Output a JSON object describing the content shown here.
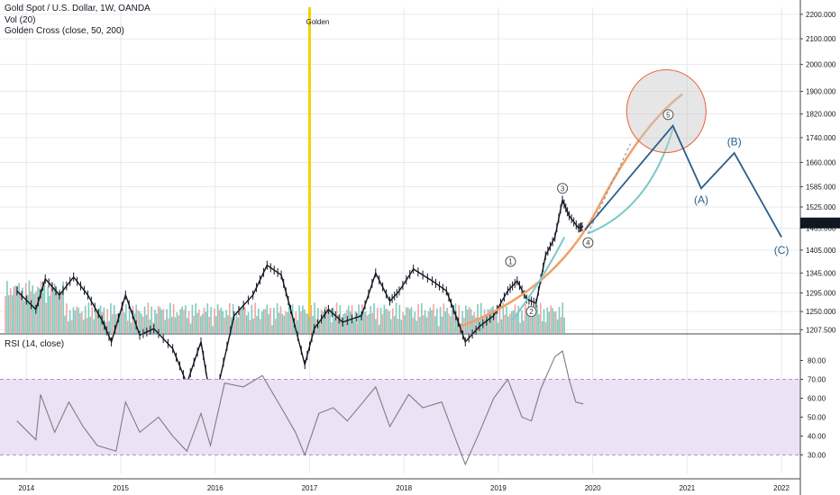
{
  "legend": {
    "title": "Gold Spot / U.S. Dollar, 1W, OANDA",
    "vol": "Vol (20)",
    "golden_cross": "Golden Cross (close, 50, 200)"
  },
  "rsi_legend": "RSI (14, close)",
  "colors": {
    "grid": "#e6e9ee",
    "candle": "#131722",
    "vol_up": "#7fcbbf",
    "vol_down": "#f3a4a3",
    "golden_line": "#f5d300",
    "orange_curve": "#f0a06a",
    "teal_curve": "#7cc9c9",
    "wave_line": "#2a5f8c",
    "circle_stroke": "#e8623b",
    "circle_fill": "rgba(200,200,200,0.45)",
    "rsi_band": "#ece2f6",
    "rsi_band_line": "#b78be0",
    "rsi_line": "#7e7e7e",
    "price_tag": "#131722"
  },
  "chart_data": {
    "type": "line",
    "symbol": "Gold Spot / U.S. Dollar, 1W, OANDA",
    "x_axis_labels": [
      "2014",
      "2015",
      "2016",
      "2017",
      "2018",
      "2019",
      "2020",
      "2021",
      "2022"
    ],
    "y_axis_labels": [
      "2200.000",
      "2100.000",
      "2000.000",
      "1900.000",
      "1820.000",
      "1740.000",
      "1660.000",
      "1585.000",
      "1525.000",
      "1465.000",
      "1405.000",
      "1345.000",
      "1295.000",
      "1250.000",
      "1207.500"
    ],
    "current_price": "1479.355",
    "golden_marker": {
      "x": 2017.0,
      "label": "Golden"
    },
    "price_series": [
      {
        "x": 2013.9,
        "y": 1300
      },
      {
        "x": 2014.1,
        "y": 1255
      },
      {
        "x": 2014.2,
        "y": 1330
      },
      {
        "x": 2014.35,
        "y": 1290
      },
      {
        "x": 2014.5,
        "y": 1335
      },
      {
        "x": 2014.65,
        "y": 1290
      },
      {
        "x": 2014.8,
        "y": 1230
      },
      {
        "x": 2014.9,
        "y": 1180
      },
      {
        "x": 2015.05,
        "y": 1290
      },
      {
        "x": 2015.2,
        "y": 1195
      },
      {
        "x": 2015.35,
        "y": 1210
      },
      {
        "x": 2015.55,
        "y": 1165
      },
      {
        "x": 2015.7,
        "y": 1090
      },
      {
        "x": 2015.85,
        "y": 1180
      },
      {
        "x": 2015.95,
        "y": 1060
      },
      {
        "x": 2016.05,
        "y": 1100
      },
      {
        "x": 2016.2,
        "y": 1240
      },
      {
        "x": 2016.4,
        "y": 1290
      },
      {
        "x": 2016.55,
        "y": 1365
      },
      {
        "x": 2016.7,
        "y": 1340
      },
      {
        "x": 2016.8,
        "y": 1255
      },
      {
        "x": 2016.95,
        "y": 1130
      },
      {
        "x": 2017.05,
        "y": 1210
      },
      {
        "x": 2017.2,
        "y": 1255
      },
      {
        "x": 2017.35,
        "y": 1225
      },
      {
        "x": 2017.55,
        "y": 1240
      },
      {
        "x": 2017.7,
        "y": 1345
      },
      {
        "x": 2017.85,
        "y": 1275
      },
      {
        "x": 2017.95,
        "y": 1300
      },
      {
        "x": 2018.1,
        "y": 1355
      },
      {
        "x": 2018.3,
        "y": 1325
      },
      {
        "x": 2018.45,
        "y": 1300
      },
      {
        "x": 2018.55,
        "y": 1240
      },
      {
        "x": 2018.65,
        "y": 1180
      },
      {
        "x": 2018.8,
        "y": 1215
      },
      {
        "x": 2018.95,
        "y": 1240
      },
      {
        "x": 2019.1,
        "y": 1300
      },
      {
        "x": 2019.2,
        "y": 1325
      },
      {
        "x": 2019.3,
        "y": 1280
      },
      {
        "x": 2019.4,
        "y": 1270
      },
      {
        "x": 2019.5,
        "y": 1390
      },
      {
        "x": 2019.6,
        "y": 1440
      },
      {
        "x": 2019.68,
        "y": 1545
      },
      {
        "x": 2019.75,
        "y": 1500
      },
      {
        "x": 2019.85,
        "y": 1465
      },
      {
        "x": 2019.9,
        "y": 1470
      }
    ],
    "projection_path": [
      {
        "x": 2019.92,
        "y": 1460
      },
      {
        "x": 2020.85,
        "y": 1780
      },
      {
        "x": 2021.15,
        "y": 1580
      },
      {
        "x": 2021.5,
        "y": 1690
      },
      {
        "x": 2022.0,
        "y": 1440
      }
    ],
    "wave_labels": [
      {
        "label": "1",
        "x": 2019.13,
        "y": 1375
      },
      {
        "label": "2",
        "x": 2019.35,
        "y": 1250
      },
      {
        "label": "3",
        "x": 2019.68,
        "y": 1580
      },
      {
        "label": "4",
        "x": 2019.95,
        "y": 1425
      },
      {
        "label": "5",
        "x": 2020.8,
        "y": 1818
      },
      {
        "label": "(A)",
        "x": 2021.15,
        "y": 1535
      },
      {
        "label": "(B)",
        "x": 2021.5,
        "y": 1715
      },
      {
        "label": "(C)",
        "x": 2022.0,
        "y": 1395
      }
    ],
    "rsi": {
      "label": "RSI (14, close)",
      "ylim": [
        25,
        85
      ],
      "y_axis_labels": [
        "80.00",
        "70.00",
        "60.00",
        "50.00",
        "40.00",
        "30.00"
      ],
      "upper_band": 70,
      "lower_band": 30,
      "values": [
        {
          "x": 2013.9,
          "y": 48
        },
        {
          "x": 2014.1,
          "y": 38
        },
        {
          "x": 2014.15,
          "y": 62
        },
        {
          "x": 2014.3,
          "y": 42
        },
        {
          "x": 2014.45,
          "y": 58
        },
        {
          "x": 2014.6,
          "y": 45
        },
        {
          "x": 2014.75,
          "y": 35
        },
        {
          "x": 2014.95,
          "y": 32
        },
        {
          "x": 2015.05,
          "y": 58
        },
        {
          "x": 2015.2,
          "y": 42
        },
        {
          "x": 2015.4,
          "y": 50
        },
        {
          "x": 2015.55,
          "y": 40
        },
        {
          "x": 2015.7,
          "y": 32
        },
        {
          "x": 2015.85,
          "y": 52
        },
        {
          "x": 2015.95,
          "y": 35
        },
        {
          "x": 2016.1,
          "y": 68
        },
        {
          "x": 2016.3,
          "y": 66
        },
        {
          "x": 2016.5,
          "y": 72
        },
        {
          "x": 2016.7,
          "y": 55
        },
        {
          "x": 2016.85,
          "y": 42
        },
        {
          "x": 2016.95,
          "y": 30
        },
        {
          "x": 2017.1,
          "y": 52
        },
        {
          "x": 2017.25,
          "y": 55
        },
        {
          "x": 2017.4,
          "y": 48
        },
        {
          "x": 2017.55,
          "y": 57
        },
        {
          "x": 2017.7,
          "y": 66
        },
        {
          "x": 2017.85,
          "y": 45
        },
        {
          "x": 2018.05,
          "y": 62
        },
        {
          "x": 2018.2,
          "y": 55
        },
        {
          "x": 2018.4,
          "y": 58
        },
        {
          "x": 2018.55,
          "y": 38
        },
        {
          "x": 2018.65,
          "y": 25
        },
        {
          "x": 2018.8,
          "y": 42
        },
        {
          "x": 2018.95,
          "y": 60
        },
        {
          "x": 2019.1,
          "y": 70
        },
        {
          "x": 2019.25,
          "y": 50
        },
        {
          "x": 2019.35,
          "y": 48
        },
        {
          "x": 2019.45,
          "y": 65
        },
        {
          "x": 2019.6,
          "y": 82
        },
        {
          "x": 2019.68,
          "y": 85
        },
        {
          "x": 2019.75,
          "y": 70
        },
        {
          "x": 2019.82,
          "y": 58
        },
        {
          "x": 2019.9,
          "y": 57
        }
      ]
    }
  }
}
